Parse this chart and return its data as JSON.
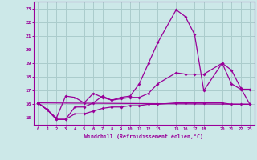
{
  "xlabel": "Windchill (Refroidissement éolien,°C)",
  "background_color": "#cce8e8",
  "grid_color": "#aacccc",
  "line_color": "#990099",
  "xlim": [
    -0.5,
    23.5
  ],
  "ylim": [
    14.5,
    23.5
  ],
  "yticks": [
    15,
    16,
    17,
    18,
    19,
    20,
    21,
    22,
    23
  ],
  "xtick_vals": [
    0,
    1,
    2,
    3,
    4,
    5,
    6,
    7,
    8,
    9,
    10,
    11,
    12,
    13,
    15,
    16,
    17,
    18,
    20,
    21,
    22,
    23
  ],
  "line1_x": [
    0,
    1,
    2,
    3,
    4,
    5,
    6,
    7,
    8,
    9,
    10,
    11,
    12,
    13,
    15,
    16,
    17,
    18,
    20,
    21,
    22,
    23
  ],
  "line1_y": [
    16.1,
    15.6,
    15.0,
    16.6,
    16.5,
    16.1,
    16.8,
    16.5,
    16.3,
    16.5,
    16.6,
    17.5,
    19.0,
    20.5,
    22.9,
    22.4,
    21.1,
    17.0,
    19.0,
    17.5,
    17.1,
    17.1
  ],
  "line2_x": [
    0,
    1,
    2,
    3,
    4,
    5,
    6,
    7,
    8,
    9,
    10,
    11,
    12,
    13,
    15,
    16,
    17,
    18,
    20,
    21,
    22,
    23
  ],
  "line2_y": [
    16.1,
    15.6,
    14.9,
    14.9,
    15.8,
    15.8,
    16.1,
    16.6,
    16.3,
    16.4,
    16.5,
    16.5,
    16.8,
    17.5,
    18.3,
    18.2,
    18.2,
    18.2,
    19.0,
    18.5,
    17.2,
    16.0
  ],
  "line3_x": [
    0,
    1,
    2,
    3,
    4,
    5,
    6,
    7,
    8,
    9,
    10,
    11,
    12,
    13,
    15,
    16,
    17,
    18,
    20,
    21,
    22,
    23
  ],
  "line3_y": [
    16.1,
    15.6,
    14.9,
    14.9,
    15.3,
    15.3,
    15.5,
    15.7,
    15.8,
    15.8,
    15.9,
    15.9,
    16.0,
    16.0,
    16.1,
    16.1,
    16.1,
    16.1,
    16.1,
    16.0,
    16.0,
    16.0
  ],
  "line4_x": [
    0,
    23
  ],
  "line4_y": [
    16.1,
    16.0
  ]
}
